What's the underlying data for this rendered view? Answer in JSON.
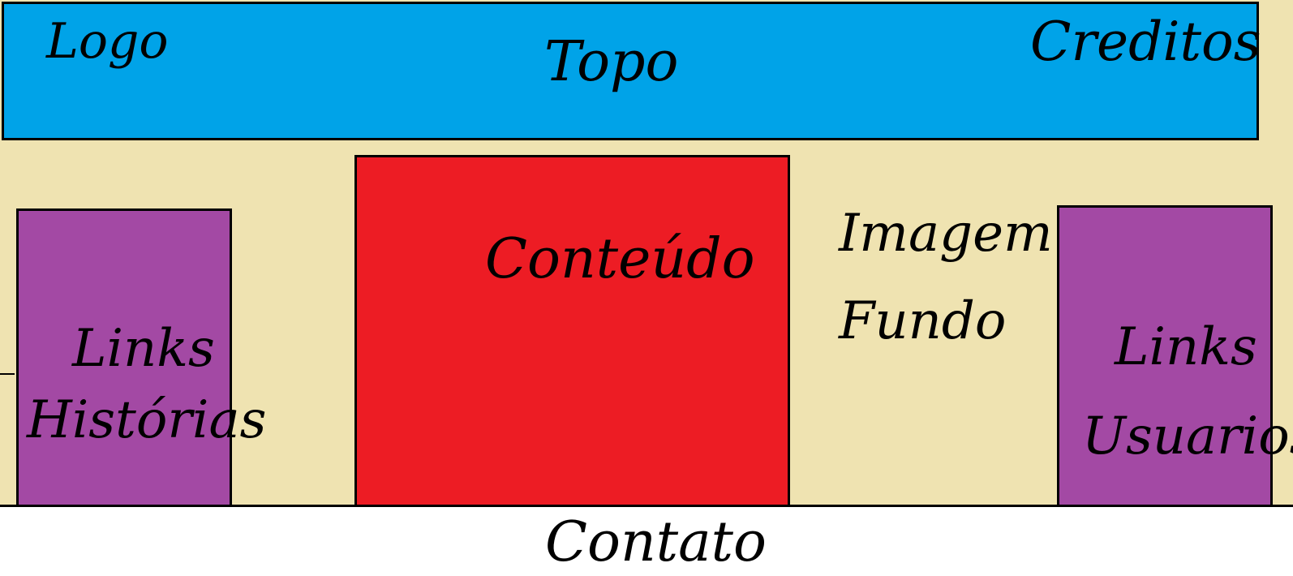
{
  "header": {
    "logo": "Logo",
    "title": "Topo",
    "credits": "Creditos",
    "color": "#00a3e8"
  },
  "content": {
    "label": "Conteúdo",
    "color": "#ed1c24"
  },
  "background_label": {
    "line1": "Imagem de",
    "line2": "Fundo",
    "color": "#efe3b1"
  },
  "left_sidebar": {
    "line1": "Links",
    "line2": "Histórias",
    "color": "#a349a4"
  },
  "right_sidebar": {
    "line1": "Links",
    "line2": "Usuarios",
    "color": "#a349a4"
  },
  "footer": {
    "label": "Contato",
    "color": "#ffffff"
  }
}
